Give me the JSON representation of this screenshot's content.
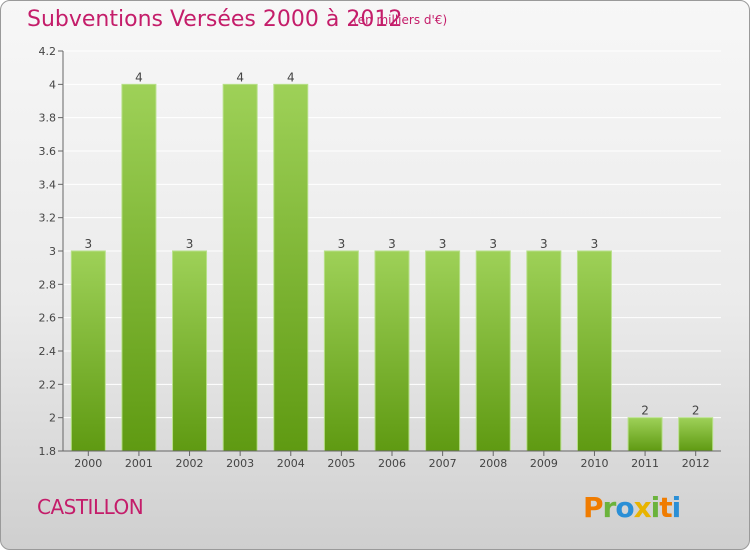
{
  "title": "Subventions Versées 2000 à 2012",
  "subtitle": "(en milliers d'€)",
  "commune": "CASTILLON",
  "brand": [
    "P",
    "r",
    "o",
    "x",
    "i",
    "t",
    "i"
  ],
  "colors": {
    "title": "#c41d6a",
    "bar_top": "#9ed158",
    "bar_bottom": "#5f9a12",
    "grid": "#ffffff"
  },
  "chart_data": {
    "type": "bar",
    "categories": [
      "2000",
      "2001",
      "2002",
      "2003",
      "2004",
      "2005",
      "2006",
      "2007",
      "2008",
      "2009",
      "2010",
      "2011",
      "2012"
    ],
    "values": [
      3,
      4,
      3,
      4,
      4,
      3,
      3,
      3,
      3,
      3,
      3,
      2,
      2
    ],
    "data_labels": [
      "3",
      "4",
      "3",
      "4",
      "4",
      "3",
      "3",
      "3",
      "3",
      "3",
      "3",
      "2",
      "2"
    ],
    "yticks": [
      "1.8",
      "2",
      "2.2",
      "2.4",
      "2.6",
      "2.8",
      "3",
      "3.2",
      "3.4",
      "3.6",
      "3.8",
      "4",
      "4.2"
    ],
    "ylim": [
      1.8,
      4.2
    ],
    "grid": true
  }
}
